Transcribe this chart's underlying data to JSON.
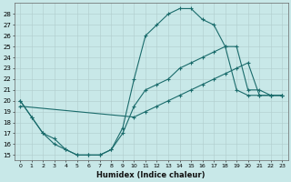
{
  "xlabel": "Humidex (Indice chaleur)",
  "xlim": [
    -0.5,
    23.5
  ],
  "ylim": [
    14.5,
    29.0
  ],
  "yticks": [
    15,
    16,
    17,
    18,
    19,
    20,
    21,
    22,
    23,
    24,
    25,
    26,
    27,
    28
  ],
  "xticks": [
    0,
    1,
    2,
    3,
    4,
    5,
    6,
    7,
    8,
    9,
    10,
    11,
    12,
    13,
    14,
    15,
    16,
    17,
    18,
    19,
    20,
    21,
    22,
    23
  ],
  "bg_color": "#c8e8e8",
  "line_color": "#1a6b6b",
  "grid_color": "#b0cccc",
  "line1_x": [
    0,
    1,
    2,
    3,
    4,
    5,
    6,
    7,
    8,
    9,
    10,
    11,
    12,
    13,
    14,
    15,
    16,
    17,
    18,
    19,
    20,
    21,
    22,
    23
  ],
  "line1_y": [
    20,
    18.5,
    17,
    16.5,
    15.5,
    15,
    15,
    15,
    15.5,
    17.5,
    22,
    26,
    27,
    28,
    28.5,
    28.5,
    27.5,
    27,
    25,
    21,
    20.5,
    20.5,
    20.5,
    20.5
  ],
  "line2_x": [
    0,
    1,
    2,
    3,
    4,
    5,
    6,
    7,
    8,
    9,
    10,
    11,
    12,
    13,
    14,
    15,
    16,
    17,
    18,
    19,
    20,
    21,
    22,
    23
  ],
  "line2_y": [
    20,
    18.5,
    17,
    16,
    15.5,
    15,
    15,
    15,
    15.5,
    17,
    19.5,
    21,
    21.5,
    22,
    23,
    23.5,
    24,
    24.5,
    25,
    25.0,
    21,
    21,
    20.5,
    20.5
  ],
  "line3_x": [
    0,
    10,
    11,
    12,
    13,
    14,
    15,
    16,
    17,
    18,
    19,
    20,
    21,
    22,
    23
  ],
  "line3_y": [
    19.5,
    18.5,
    19,
    19.5,
    20,
    20.5,
    21,
    21.5,
    22,
    22.5,
    23,
    23.5,
    20.5,
    20.5,
    20.5
  ]
}
